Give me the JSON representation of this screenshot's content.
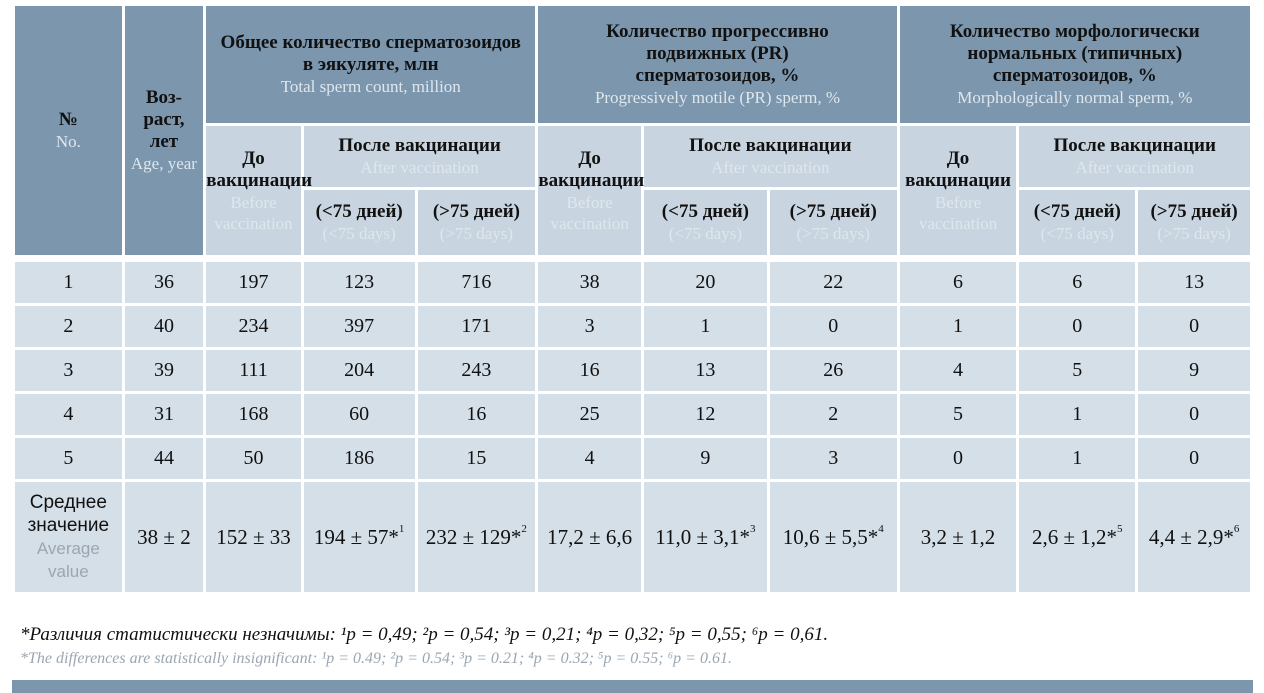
{
  "header": {
    "no": {
      "ru": "№",
      "en": "No."
    },
    "age": {
      "ru": "Воз-раст, лет",
      "en": "Age, year"
    },
    "groups": [
      {
        "ru": "Общее количество сперматозоидов в эякуляте, млн",
        "en": "Total sperm count, million"
      },
      {
        "ru": "Количество прогрессивно подвижных (PR) сперматозоидов, %",
        "en": "Progressively motile (PR) sperm, %"
      },
      {
        "ru": "Количество морфологически нормальных (типичных) сперматозоидов, %",
        "en": "Morphologically normal sperm, %"
      }
    ],
    "before": {
      "ru": "До вакцинации",
      "en": "Before vaccination"
    },
    "after": {
      "ru": "После вакцинации",
      "en": "After vaccination"
    },
    "lt75": {
      "ru": "(<75 дней)",
      "en": "(<75 days)"
    },
    "gt75": {
      "ru": "(>75 дней)",
      "en": "(>75 days)"
    }
  },
  "rows": [
    [
      "1",
      "36",
      "197",
      "123",
      "716",
      "38",
      "20",
      "22",
      "6",
      "6",
      "13"
    ],
    [
      "2",
      "40",
      "234",
      "397",
      "171",
      "3",
      "1",
      "0",
      "1",
      "0",
      "0"
    ],
    [
      "3",
      "39",
      "111",
      "204",
      "243",
      "16",
      "13",
      "26",
      "4",
      "5",
      "9"
    ],
    [
      "4",
      "31",
      "168",
      "60",
      "16",
      "25",
      "12",
      "2",
      "5",
      "1",
      "0"
    ],
    [
      "5",
      "44",
      "50",
      "186",
      "15",
      "4",
      "9",
      "3",
      "0",
      "1",
      "0"
    ]
  ],
  "average": {
    "label_ru": "Среднее значение",
    "label_en": "Average value",
    "cells": [
      {
        "v": "38 ± 2",
        "sup": ""
      },
      {
        "v": "152 ± 33",
        "sup": ""
      },
      {
        "v": "194 ± 57*",
        "sup": "1"
      },
      {
        "v": "232 ± 129*",
        "sup": "2"
      },
      {
        "v": "17,2 ± 6,6",
        "sup": ""
      },
      {
        "v": "11,0 ± 3,1*",
        "sup": "3"
      },
      {
        "v": "10,6 ± 5,5*",
        "sup": "4"
      },
      {
        "v": "3,2 ± 1,2",
        "sup": ""
      },
      {
        "v": "2,6 ± 1,2*",
        "sup": "5"
      },
      {
        "v": "4,4 ± 2,9*",
        "sup": "6"
      }
    ]
  },
  "notes": {
    "ru": "*Различия статистически незначимы: ¹p = 0,49; ²p = 0,54; ³p = 0,21; ⁴p = 0,32; ⁵p = 0,55; ⁶p = 0,61.",
    "en": "*The differences are statistically insignificant: ¹p = 0.49; ²p = 0.54; ³p = 0.21; ⁴p = 0.32; ⁵p = 0.55; ⁶p = 0.61."
  }
}
